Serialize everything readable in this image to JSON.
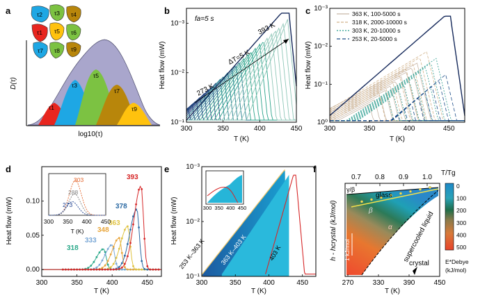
{
  "panel_labels": [
    "a",
    "b",
    "c",
    "d",
    "e",
    "f"
  ],
  "chart_data": [
    {
      "panel": "a",
      "type": "area",
      "ylabel": "D(τ)",
      "xlabel": "log10(τ)",
      "tau_labels": [
        "τ2",
        "τ3",
        "τ4",
        "τ1",
        "τ5",
        "τ6",
        "τ7",
        "τ8",
        "τ9"
      ],
      "region_labels": [
        "τ1",
        "τ3",
        "τ5",
        "τ7",
        "τ9"
      ],
      "colors": {
        "envelope": "#a9a6cc",
        "red": "#e8261f",
        "blue": "#1ea7e4",
        "green": "#7cc242",
        "brown": "#b8860b",
        "yellow": "#ffc20e"
      }
    },
    {
      "panel": "b",
      "type": "line",
      "annotation_fa": "fa=5 s",
      "annotation_dT": "ΔT=5 K",
      "label_low": "273 K",
      "label_high": "393 K",
      "xlabel": "T (K)",
      "ylabel": "Heat flow (mW)",
      "xlim": [
        300,
        450
      ],
      "ylim": [
        0.001,
        0.2
      ],
      "yscale": "log",
      "xticks": [
        "300",
        "350",
        "400",
        "450"
      ],
      "yticks": [
        "10⁻³",
        "10⁻²",
        "10⁻¹"
      ]
    },
    {
      "panel": "c",
      "type": "line",
      "xlabel": "T (K)",
      "ylabel": "Heat flow (mW)",
      "xlim": [
        300,
        470
      ],
      "ylim": [
        0.001,
        1
      ],
      "yscale": "log",
      "xticks": [
        "300",
        "350",
        "400",
        "450"
      ],
      "yticks": [
        "10⁻³",
        "10⁻²",
        "10⁻¹",
        "10⁰"
      ],
      "legend": [
        "363 K, 100-5000 s",
        "318 K, 2000-10000 s",
        "303 K, 20-10000 s",
        "253 K, 20-5000 s"
      ],
      "legend_colors": [
        "#c8b6a6",
        "#d2b48c",
        "#2a9d8f",
        "#1d4e89"
      ]
    },
    {
      "panel": "d",
      "type": "scatter",
      "xlabel": "T (K)",
      "ylabel": "Heat flow (mW)",
      "xlim": [
        300,
        470
      ],
      "ylim": [
        -0.01,
        0.15
      ],
      "xticks": [
        "300",
        "350",
        "400",
        "450"
      ],
      "yticks": [
        "0.00",
        "0.05",
        "0.10"
      ],
      "series": [
        {
          "name": "318",
          "color": "#2aa889",
          "peak_x": 388,
          "peak_y": 0.03
        },
        {
          "name": "333",
          "color": "#79a7d6",
          "peak_x": 400,
          "peak_y": 0.036
        },
        {
          "name": "348",
          "color": "#e8a53a",
          "peak_x": 410,
          "peak_y": 0.046
        },
        {
          "name": "363",
          "color": "#e0c341",
          "peak_x": 422,
          "peak_y": 0.063
        },
        {
          "name": "378",
          "color": "#2c6aa3",
          "peak_x": 435,
          "peak_y": 0.088
        },
        {
          "name": "393",
          "color": "#d62728",
          "peak_x": 441,
          "peak_y": 0.122
        }
      ],
      "inset": {
        "xlabel": "T (K)",
        "xticks": [
          "300",
          "350",
          "400",
          "450"
        ],
        "series": [
          {
            "name": "303",
            "color": "#e4662c"
          },
          {
            "name": "288",
            "color": "#808080"
          },
          {
            "name": "273",
            "color": "#1d3f8f"
          }
        ]
      }
    },
    {
      "panel": "e",
      "type": "area",
      "xlabel": "T (K)",
      "ylabel": "Heat flow (mW)",
      "xlim": [
        300,
        470
      ],
      "ylim": [
        0.001,
        0.1
      ],
      "yscale": "log",
      "xticks": [
        "300",
        "350",
        "400",
        "450"
      ],
      "yticks": [
        "10⁻³",
        "10⁻²",
        "10⁻¹"
      ],
      "band_labels": [
        "253 K–363 K",
        "363 K–403 K",
        "403 K"
      ],
      "inset_xticks": [
        "300",
        "350",
        "400",
        "450"
      ]
    },
    {
      "panel": "f",
      "type": "area",
      "xlabel": "T (K)",
      "ylabel": "h - hcrystal (kJ/mol)",
      "top_axis_label": "T/Tg",
      "top_ticks": [
        "0.7",
        "0.8",
        "0.9",
        "1.0"
      ],
      "xticks": [
        "270",
        "330",
        "390",
        "450"
      ],
      "labels": {
        "glass": "glass",
        "gamma_beta": "γ/β",
        "beta": "β",
        "alpha": "α",
        "supercooled": "supercooled liquid",
        "crystal": "crystal",
        "scale": "1 kJ/mol"
      },
      "colorbar_ticks": [
        "0",
        "100",
        "200",
        "300",
        "400",
        "500"
      ],
      "colorbar_label": "E*Debye",
      "colorbar_unit": "(kJ/mol)"
    }
  ]
}
